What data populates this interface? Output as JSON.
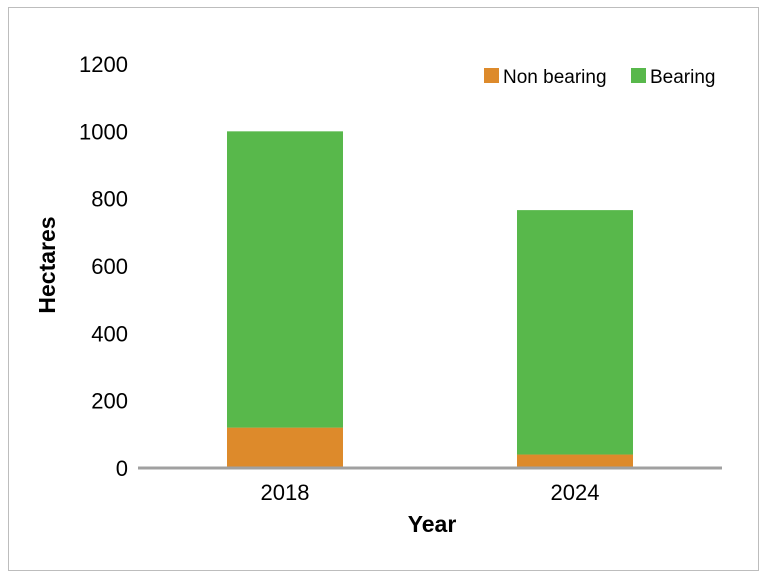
{
  "chart_data": {
    "type": "bar",
    "stacked": true,
    "title": "",
    "xlabel": "Year",
    "ylabel": "Hectares",
    "categories": [
      "2018",
      "2024"
    ],
    "series": [
      {
        "name": "Non bearing",
        "values": [
          120,
          40
        ],
        "color": "#dd8a2b"
      },
      {
        "name": "Bearing",
        "values": [
          880,
          726
        ],
        "color": "#58b84b"
      }
    ],
    "ylim": [
      0,
      1200
    ],
    "yticks": [
      "0",
      "200",
      "400",
      "600",
      "800",
      "1000",
      "1200"
    ],
    "grid": false,
    "legend": "top-right"
  }
}
